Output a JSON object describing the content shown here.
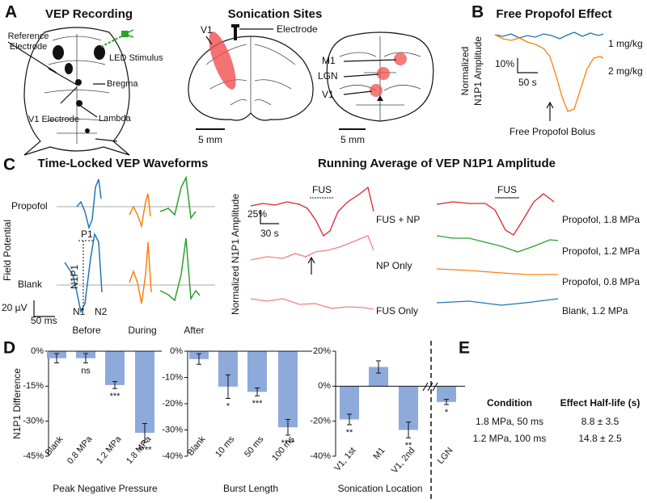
{
  "panel_labels": [
    "A",
    "B",
    "C",
    "D",
    "E"
  ],
  "panel_a": {
    "title_left": "VEP Recording",
    "reference": [
      "Reference",
      "Electrode"
    ],
    "led": "LED Stimulus",
    "bregma": "Bregma",
    "lambda": "Lambda",
    "v1_electrode": "V1 Electrode",
    "title_right": "Sonication Sites",
    "v1": "V1",
    "electrode": "Electrode",
    "scale_bars": [
      "5 mm",
      "5 mm"
    ],
    "sites": [
      "M1",
      "LGN",
      "V1"
    ]
  },
  "panel_b": {
    "title": "Free Propofol Effect",
    "ylabel": [
      "Normalized",
      "N1P1 Amplitude"
    ],
    "scale_y": "10%",
    "scale_x": "50 s",
    "series": [
      "1 mg/kg",
      "2 mg/kg"
    ],
    "annotation": "Free Propofol Bolus"
  },
  "panel_c": {
    "title_left": "Time-Locked VEP Waveforms",
    "rows": [
      "Propofol",
      "Blank"
    ],
    "ylabel": "Field Potential",
    "scale_y": "20 µV",
    "scale_x": "50 ms",
    "peaks": [
      "P1",
      "N1P1",
      "N1",
      "N2"
    ],
    "columns": [
      "Before",
      "During",
      "After"
    ],
    "title_right": "Running Average of VEP N1P1 Amplitude",
    "ylabel_right": "Normalized N1P1 Amplitude",
    "fus": [
      "FUS",
      "FUS"
    ],
    "scale_y_right": "25%",
    "scale_x_right": "30 s",
    "left_traces": [
      "FUS + NP",
      "NP Only",
      "FUS Only"
    ],
    "right_traces": [
      "Propofol, 1.8 MPa",
      "Propofol, 1.2 MPa",
      "Propofol, 0.8 MPa",
      "Blank, 1.2 MPa"
    ]
  },
  "chart_data": [
    {
      "type": "bar",
      "ylabel": "N1P1 Difference",
      "xlabel": "Peak Negative Pressure",
      "categories": [
        "Blank",
        "0.8 MPa",
        "1.2 MPa",
        "1.8 MPa"
      ],
      "values": [
        -3,
        -3,
        -14.5,
        -35
      ],
      "errors": [
        2,
        2,
        1.5,
        4
      ],
      "significance": [
        null,
        "ns",
        "***",
        "****"
      ],
      "color": "#8eaadb",
      "ylim": [
        -45,
        0
      ],
      "yticks": [
        {
          "value": 0,
          "label": "0%"
        },
        {
          "value": -15,
          "label": "-15%"
        },
        {
          "value": -30,
          "label": "-30%"
        },
        {
          "value": -45,
          "label": "-45%"
        }
      ]
    },
    {
      "type": "bar",
      "xlabel": "Burst Length",
      "categories": [
        "Blank",
        "10 ms",
        "50 ms",
        "100 ms"
      ],
      "values": [
        -3,
        -13.5,
        -15.5,
        -29
      ],
      "errors": [
        2,
        4.5,
        1.5,
        3
      ],
      "significance": [
        null,
        "*",
        "***",
        "****"
      ],
      "color": "#8eaadb",
      "ylim": [
        -40,
        0
      ],
      "yticks": [
        {
          "value": 0,
          "label": "0%"
        },
        {
          "value": -10,
          "label": "-10%"
        },
        {
          "value": -20,
          "label": "-20%"
        },
        {
          "value": -30,
          "label": "-30%"
        },
        {
          "value": -40,
          "label": "-40%"
        }
      ]
    },
    {
      "type": "bar",
      "xlabel": "Sonication Location",
      "categories": [
        "V1, 1st",
        "M1",
        "V1, 2nd",
        "LGN"
      ],
      "values": [
        -19,
        11,
        -25,
        -9
      ],
      "errors": [
        3,
        3.5,
        4.5,
        1.5
      ],
      "significance": [
        "**",
        null,
        "**",
        "*"
      ],
      "color": "#8eaadb",
      "ylim": [
        -40,
        20
      ],
      "yticks": [
        {
          "value": 20,
          "label": "20%"
        },
        {
          "value": 0,
          "label": "0%"
        },
        {
          "value": -20,
          "label": "-20%"
        },
        {
          "value": -40,
          "label": "-40%"
        }
      ]
    }
  ],
  "panel_e": {
    "table": {
      "header": [
        "Condition",
        "Effect Half-life (s)"
      ],
      "rows": [
        [
          "1.8 MPa, 50 ms",
          "8.8 ± 3.5"
        ],
        [
          "1.2 MPa, 100 ms",
          "14.8 ± 2.5"
        ]
      ]
    }
  }
}
